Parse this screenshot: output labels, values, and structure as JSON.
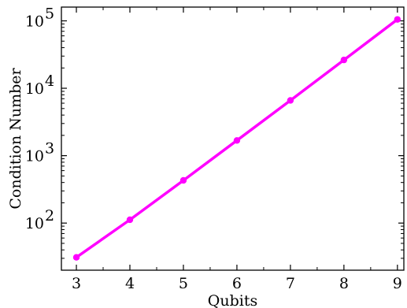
{
  "chart_data": {
    "type": "line",
    "title": "",
    "xlabel": "Qubits",
    "ylabel": "Condition Number",
    "x": [
      3,
      4,
      5,
      6,
      7,
      8,
      9
    ],
    "series": [
      {
        "values": [
          31,
          112,
          430,
          1680,
          6600,
          26300,
          105000
        ]
      }
    ],
    "xlim": [
      2.72,
      9.12
    ],
    "ylim": [
      20,
      160000
    ],
    "yscale": "log",
    "xticks": [
      "3",
      "4",
      "5",
      "6",
      "7",
      "8",
      "9"
    ],
    "yticks": [
      {
        "value": 100,
        "base": "10",
        "exp": "2"
      },
      {
        "value": 1000,
        "base": "10",
        "exp": "3"
      },
      {
        "value": 10000,
        "base": "10",
        "exp": "4"
      },
      {
        "value": 100000,
        "base": "10",
        "exp": "5"
      }
    ],
    "grid": false,
    "legend": "none",
    "colors": {
      "series": "#ff00ff",
      "axis": "#000000"
    }
  }
}
